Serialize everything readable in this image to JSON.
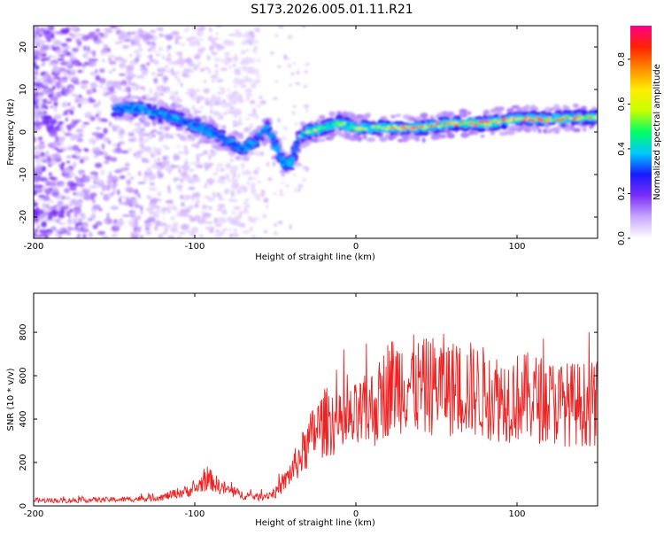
{
  "figure_title": "S173.2026.005.01.11.R21",
  "colors": {
    "snr_line": "#ee2222",
    "frame": "#000000"
  },
  "chart_data": [
    {
      "type": "heatmap",
      "name": "spectrogram",
      "xlabel": "Height of straight line (km)",
      "ylabel": "Frequency (Hz)",
      "xlim": [
        -200,
        150
      ],
      "ylim": [
        -25,
        25
      ],
      "xticks": [
        -200,
        -100,
        0,
        100
      ],
      "xtick_labels": [
        "-200",
        "-100",
        "0",
        "100"
      ],
      "yticks": [
        20,
        10,
        0,
        -10,
        -20
      ],
      "ytick_labels": [
        "20",
        "10",
        "0",
        "-10",
        "-20"
      ],
      "ridge": [
        [
          -145,
          5.5
        ],
        [
          -135,
          5.5
        ],
        [
          -125,
          4.5
        ],
        [
          -115,
          3.5
        ],
        [
          -110,
          3.0
        ],
        [
          -100,
          1.5
        ],
        [
          -90,
          0
        ],
        [
          -80,
          -2
        ],
        [
          -70,
          -4
        ],
        [
          -62,
          -2
        ],
        [
          -55,
          1
        ],
        [
          -48,
          -5
        ],
        [
          -44,
          -8
        ],
        [
          -40,
          -7
        ],
        [
          -35,
          -1
        ],
        [
          -30,
          0
        ],
        [
          -20,
          1.0
        ],
        [
          -10,
          2.0
        ],
        [
          0,
          1.0
        ],
        [
          20,
          1.0
        ],
        [
          40,
          1.0
        ],
        [
          60,
          2.0
        ],
        [
          80,
          2.0
        ],
        [
          100,
          3.0
        ],
        [
          120,
          3.0
        ],
        [
          140,
          3.5
        ],
        [
          150,
          3.5
        ]
      ],
      "colorbar": {
        "label": "Normalized spectral amplitude",
        "range": [
          0.0,
          0.95
        ],
        "ticks": [
          0.0,
          0.2,
          0.4,
          0.6,
          0.8
        ],
        "tick_labels": [
          "0.0",
          "0.2",
          "0.4",
          "0.6",
          "0.8"
        ],
        "stops": [
          "#ffffff",
          "#c9a8ff",
          "#7b2ff7",
          "#1a1aff",
          "#00c8ff",
          "#00ff66",
          "#c8ff00",
          "#ffee00",
          "#ff8800",
          "#ff2200",
          "#ff0088"
        ]
      }
    },
    {
      "type": "line",
      "name": "snr",
      "xlabel": "Height of straight line (km)",
      "ylabel": "SNR (10 * v/v)",
      "xlim": [
        -200,
        150
      ],
      "ylim": [
        0,
        980
      ],
      "xticks": [
        -200,
        -100,
        0,
        100
      ],
      "xtick_labels": [
        "-200",
        "-100",
        "0",
        "100"
      ],
      "yticks": [
        0,
        200,
        400,
        600,
        800
      ],
      "ytick_labels": [
        "0",
        "200",
        "400",
        "600",
        "800"
      ],
      "series": [
        {
          "name": "SNR",
          "x": [
            -200,
            -180,
            -160,
            -140,
            -120,
            -110,
            -100,
            -95,
            -90,
            -85,
            -80,
            -75,
            -70,
            -60,
            -50,
            -45,
            -40,
            -35,
            -30,
            -25,
            -20,
            -15,
            -10,
            -5,
            0,
            5,
            10,
            15,
            20,
            25,
            30,
            35,
            40,
            45,
            50,
            55,
            60,
            70,
            80,
            90,
            100,
            110,
            120,
            130,
            140,
            150
          ],
          "y": [
            25,
            25,
            28,
            30,
            40,
            60,
            75,
            110,
            120,
            90,
            75,
            60,
            50,
            40,
            60,
            100,
            160,
            220,
            280,
            350,
            380,
            400,
            360,
            380,
            400,
            420,
            450,
            480,
            550,
            560,
            580,
            560,
            540,
            550,
            560,
            560,
            540,
            540,
            520,
            500,
            500,
            500,
            480,
            470,
            470,
            470
          ]
        }
      ]
    }
  ]
}
